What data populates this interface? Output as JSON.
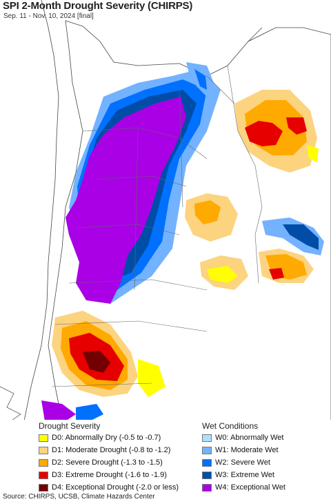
{
  "title": "SPI 2-Month Drought Severity (CHIRPS)",
  "subtitle": "Sep. 11 - Nov. 10, 2024 [final]",
  "legend": {
    "drought_heading": "Drought Severity",
    "wet_heading": "Wet Conditions",
    "drought_items": [
      {
        "label": "D0: Abnormally Dry (-0.5 to -0.7)",
        "color": "#ffff00"
      },
      {
        "label": "D1: Moderate Drought (-0.8 to -1.2)",
        "color": "#fcd37f"
      },
      {
        "label": "D2: Severe Drought (-1.3 to -1.5)",
        "color": "#ffaa00"
      },
      {
        "label": "D3: Extreme Drought (-1.6 to -1.9)",
        "color": "#e60000"
      },
      {
        "label": "D4: Exceptional Drought (-2.0 or less)",
        "color": "#730000"
      }
    ],
    "wet_items": [
      {
        "label": "W0: Abnormally Wet",
        "color": "#aae1ff"
      },
      {
        "label": "W1: Moderate Wet",
        "color": "#73b2ff"
      },
      {
        "label": "W2: Severe Wet",
        "color": "#0070ff"
      },
      {
        "label": "W3: Extreme Wet",
        "color": "#004da8"
      },
      {
        "label": "W4: Exceptional Wet",
        "color": "#a900e6"
      }
    ]
  },
  "source": "Source: CHIRPS, UCSB, Climate Hazards Center"
}
